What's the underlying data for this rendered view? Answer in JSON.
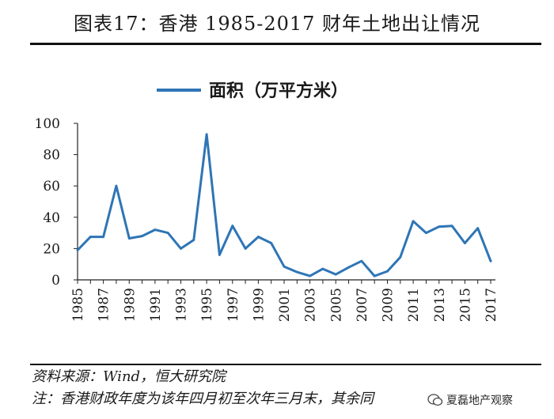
{
  "header": {
    "title": "图表17：香港 1985-2017 财年土地出让情况"
  },
  "chart_data": {
    "type": "line",
    "title": "图表17：香港 1985-2017 财年土地出让情况",
    "xlabel": "",
    "ylabel": "",
    "x": [
      1985,
      1986,
      1987,
      1988,
      1989,
      1990,
      1991,
      1992,
      1993,
      1994,
      1995,
      1996,
      1997,
      1998,
      1999,
      2000,
      2001,
      2002,
      2003,
      2004,
      2005,
      2006,
      2007,
      2008,
      2009,
      2010,
      2011,
      2012,
      2013,
      2014,
      2015,
      2016,
      2017
    ],
    "x_tick_labels": [
      "1985",
      "1987",
      "1989",
      "1991",
      "1993",
      "1995",
      "1997",
      "1999",
      "2001",
      "2003",
      "2005",
      "2007",
      "2009",
      "2011",
      "2013",
      "2015",
      "2017"
    ],
    "y_tick_labels": [
      "0",
      "20",
      "40",
      "60",
      "80",
      "100"
    ],
    "ylim": [
      0,
      100
    ],
    "grid": false,
    "legend": "top",
    "series": [
      {
        "name": "面积（万平方米）",
        "color": "#2E75B6",
        "values": [
          19,
          27.5,
          27.5,
          60,
          26.5,
          28,
          32,
          30,
          20,
          25.5,
          93,
          16,
          34.5,
          20,
          27.5,
          23.5,
          8.5,
          5,
          2.5,
          7,
          3.5,
          8,
          12,
          2.5,
          5.5,
          14.5,
          37.5,
          30,
          34,
          34.5,
          23.5,
          33,
          12
        ]
      }
    ]
  },
  "footer": {
    "source": "资料来源：Wind，恒大研究院",
    "note": "注：香港财政年度为该年四月初至次年三月末，其余同",
    "watermark": "夏磊地产观察"
  }
}
